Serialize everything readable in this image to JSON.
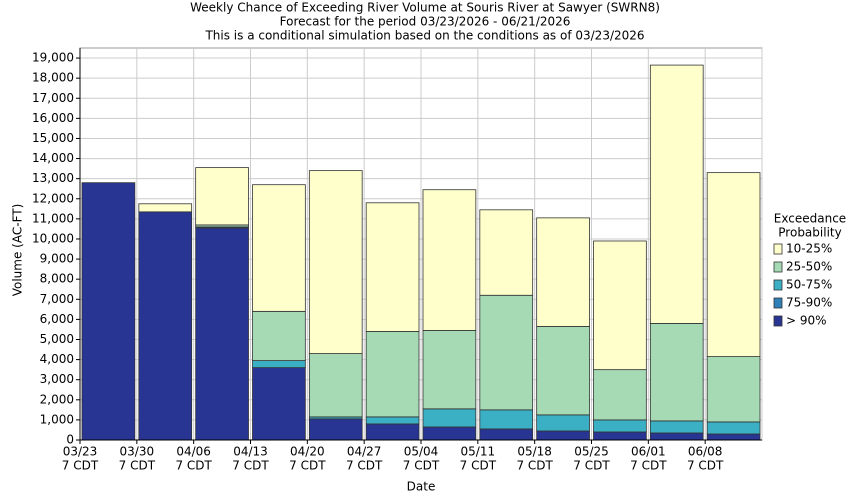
{
  "chart_data": {
    "type": "stacked_bar",
    "title": [
      "Weekly Chance of Exceeding River Volume at Souris River at Sawyer (SWRN8)",
      "Forecast for the period 03/23/2026 - 06/21/2026",
      "This is a conditional simulation based on the conditions as of 03/23/2026"
    ],
    "xlabel": "Date",
    "ylabel": "Volume (AC-FT)",
    "legend_title": [
      "Exceedance",
      "Probability"
    ],
    "categories": [
      [
        "03/23",
        "7 CDT"
      ],
      [
        "03/30",
        "7 CDT"
      ],
      [
        "04/06",
        "7 CDT"
      ],
      [
        "04/13",
        "7 CDT"
      ],
      [
        "04/20",
        "7 CDT"
      ],
      [
        "04/27",
        "7 CDT"
      ],
      [
        "05/04",
        "7 CDT"
      ],
      [
        "05/11",
        "7 CDT"
      ],
      [
        "05/18",
        "7 CDT"
      ],
      [
        "05/25",
        "7 CDT"
      ],
      [
        "06/01",
        "7 CDT"
      ],
      [
        "06/08",
        "7 CDT"
      ]
    ],
    "series": [
      {
        "name": "> 90%",
        "color": "#283593",
        "values": [
          12800,
          11350,
          10550,
          3600,
          1050,
          800,
          650,
          550,
          450,
          400,
          350,
          300
        ]
      },
      {
        "name": "75-90%",
        "color": "#2f7fb8",
        "values": [
          0,
          0,
          50,
          0,
          0,
          0,
          0,
          0,
          0,
          0,
          0,
          0
        ]
      },
      {
        "name": "50-75%",
        "color": "#3bb0c4",
        "values": [
          0,
          0,
          0,
          350,
          100,
          350,
          900,
          950,
          800,
          600,
          600,
          600
        ]
      },
      {
        "name": "25-50%",
        "color": "#a5dab5",
        "values": [
          0,
          0,
          100,
          2450,
          3150,
          4250,
          3900,
          5700,
          4400,
          2500,
          4850,
          3250
        ]
      },
      {
        "name": "10-25%",
        "color": "#ffffcc",
        "values": [
          0,
          400,
          2850,
          6300,
          9100,
          6400,
          7000,
          4250,
          5400,
          6400,
          12850,
          9150
        ]
      }
    ],
    "ylim": [
      0,
      19500
    ],
    "yticks": [
      0,
      {
        "value": 1000,
        "label": "1,000"
      },
      {
        "value": 2000,
        "label": "2,000"
      },
      {
        "value": 3000,
        "label": "3,000"
      },
      {
        "value": 4000,
        "label": "4,000"
      },
      {
        "value": 5000,
        "label": "5,000"
      },
      {
        "value": 6000,
        "label": "6,000"
      },
      {
        "value": 7000,
        "label": "7,000"
      },
      {
        "value": 8000,
        "label": "8,000"
      },
      {
        "value": 9000,
        "label": "9,000"
      },
      {
        "value": 10000,
        "label": "10,000"
      },
      {
        "value": 11000,
        "label": "11,000"
      },
      {
        "value": 12000,
        "label": "12,000"
      },
      {
        "value": 13000,
        "label": "13,000"
      },
      {
        "value": 14000,
        "label": "14,000"
      },
      {
        "value": 15000,
        "label": "15,000"
      },
      {
        "value": 16000,
        "label": "16,000"
      },
      {
        "value": 17000,
        "label": "17,000"
      },
      {
        "value": 18000,
        "label": "18,000"
      },
      {
        "value": 19000,
        "label": "19,000"
      }
    ],
    "grid": true
  }
}
